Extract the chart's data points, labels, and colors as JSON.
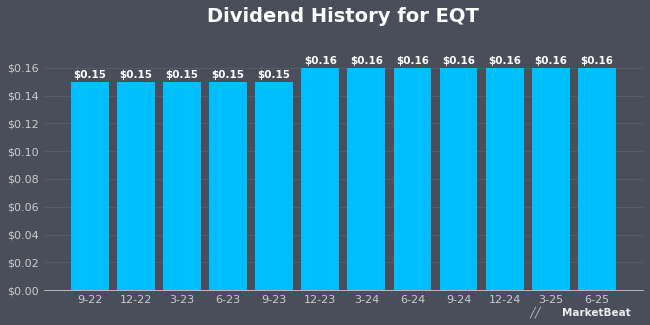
{
  "title": "Dividend History for EQT",
  "categories": [
    "9-22",
    "12-22",
    "3-23",
    "6-23",
    "9-23",
    "12-23",
    "3-24",
    "6-24",
    "9-24",
    "12-24",
    "3-25",
    "6-25"
  ],
  "values": [
    0.15,
    0.15,
    0.15,
    0.15,
    0.15,
    0.16,
    0.16,
    0.16,
    0.16,
    0.16,
    0.16,
    0.16
  ],
  "bar_color": "#00BFFF",
  "background_color": "#4a4e5a",
  "plot_bg_color": "#4a4e5a",
  "title_color": "#ffffff",
  "label_color": "#cccccc",
  "grid_color": "#5a5e6a",
  "ylim": [
    0,
    0.185
  ],
  "yticks": [
    0.0,
    0.02,
    0.04,
    0.06,
    0.08,
    0.1,
    0.12,
    0.14,
    0.16
  ],
  "title_fontsize": 14,
  "tick_fontsize": 8,
  "bar_label_fontsize": 7.5,
  "bar_width": 0.82
}
